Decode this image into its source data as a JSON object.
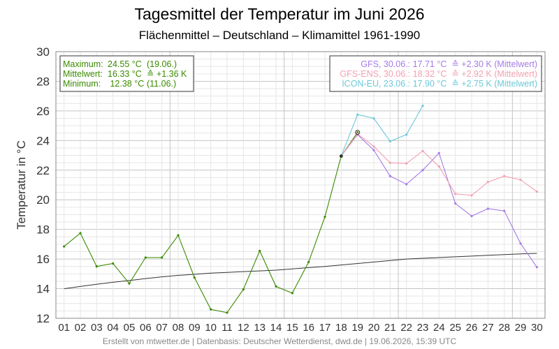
{
  "chart_data": {
    "type": "line",
    "title": "Tagesmittel der Temperatur im Juni 2026",
    "subtitle": "Flächenmittel – Deutschland – Klimamittel 1961-1990",
    "ylabel": "Temperatur in °C",
    "xlabel": "",
    "ylim": [
      12,
      30
    ],
    "xlim": [
      0.5,
      30.5
    ],
    "y_ticks": [
      12,
      14,
      16,
      18,
      20,
      22,
      24,
      26,
      28,
      30
    ],
    "x_ticks": [
      "01",
      "02",
      "03",
      "04",
      "05",
      "06",
      "07",
      "08",
      "09",
      "10",
      "11",
      "12",
      "13",
      "14",
      "15",
      "16",
      "17",
      "18",
      "19",
      "20",
      "21",
      "22",
      "23",
      "24",
      "25",
      "26",
      "27",
      "28",
      "29",
      "30"
    ],
    "grid": true,
    "footer": "Erstellt von mtwetter.de | Datenbasis: Deutscher Wetterdienst, dwd.de | 19.06.2026, 15:39 UTC",
    "colors": {
      "observed": "#3a8a00",
      "gfs": "#a57be8",
      "gfs_ens": "#f2a0b0",
      "icon_eu": "#6cc8d8",
      "climate": "#333333",
      "grid_minor": "#e6e6e6",
      "grid_major": "#c4c4c4"
    },
    "stats_box": {
      "position": "top-left",
      "rows": [
        {
          "label": "Maximum:",
          "value": "24.55 °C",
          "extra": "(19.06.)"
        },
        {
          "label": "Mittelwert:",
          "value": "16.33 °C",
          "extra": "≙ +1.36 K"
        },
        {
          "label": "Minimum:",
          "value": " 12.38 °C",
          "extra": "(11.06.)"
        }
      ]
    },
    "legend": {
      "position": "top-right",
      "entries": [
        {
          "series": "gfs",
          "text": "GFS, 30.06.: 17.71 °C  ≙ +2.30 K (Mittelwert)"
        },
        {
          "series": "gfs_ens",
          "text": "GFS-ENS, 30.06.: 18.32 °C  ≙ +2.92 K (Mittelwert)"
        },
        {
          "series": "icon_eu",
          "text": "ICON-EU, 23.06.: 17.90 °C  ≙ +2.75 K (Mittelwert)"
        }
      ]
    },
    "series": [
      {
        "key": "climate",
        "x": [
          1,
          2,
          3,
          4,
          5,
          6,
          7,
          8,
          9,
          10,
          11,
          12,
          13,
          14,
          15,
          16,
          17,
          18,
          19,
          20,
          21,
          22,
          23,
          24,
          25,
          26,
          27,
          28,
          29,
          30
        ],
        "y": [
          14.0,
          14.15,
          14.3,
          14.43,
          14.55,
          14.68,
          14.8,
          14.9,
          14.97,
          15.05,
          15.1,
          15.15,
          15.2,
          15.25,
          15.33,
          15.42,
          15.5,
          15.6,
          15.7,
          15.8,
          15.9,
          16.0,
          16.05,
          16.1,
          16.15,
          16.2,
          16.25,
          16.3,
          16.35,
          16.38
        ]
      },
      {
        "key": "observed",
        "x": [
          1,
          2,
          3,
          4,
          5,
          6,
          7,
          8,
          9,
          10,
          11,
          12,
          13,
          14,
          15,
          16,
          17,
          18,
          19
        ],
        "y": [
          16.85,
          17.75,
          15.5,
          15.7,
          14.35,
          16.1,
          16.1,
          17.6,
          14.75,
          12.6,
          12.38,
          13.95,
          16.55,
          14.15,
          13.7,
          15.8,
          18.85,
          22.95,
          24.55
        ]
      },
      {
        "key": "gfs",
        "x": [
          18,
          19,
          20,
          21,
          22,
          23,
          24,
          25,
          26,
          27,
          28,
          29,
          30
        ],
        "y": [
          22.95,
          24.4,
          23.35,
          21.6,
          21.05,
          22.0,
          23.15,
          19.75,
          18.9,
          19.4,
          19.25,
          17.05,
          15.45
        ]
      },
      {
        "key": "gfs_ens",
        "x": [
          18,
          19,
          20,
          21,
          22,
          23,
          24,
          25,
          26,
          27,
          28,
          29,
          30
        ],
        "y": [
          22.95,
          24.45,
          23.6,
          22.5,
          22.45,
          23.3,
          22.25,
          20.4,
          20.3,
          21.2,
          21.6,
          21.35,
          20.55
        ]
      },
      {
        "key": "icon_eu",
        "x": [
          18,
          19,
          20,
          21,
          22,
          23
        ],
        "y": [
          22.95,
          25.75,
          25.5,
          23.95,
          24.4,
          26.35
        ]
      }
    ],
    "markers": [
      {
        "x": 18,
        "y": 22.95,
        "shape": "dot",
        "color": "#333333"
      },
      {
        "x": 19,
        "y": 24.55,
        "shape": "ring",
        "color": "#333333"
      }
    ]
  }
}
